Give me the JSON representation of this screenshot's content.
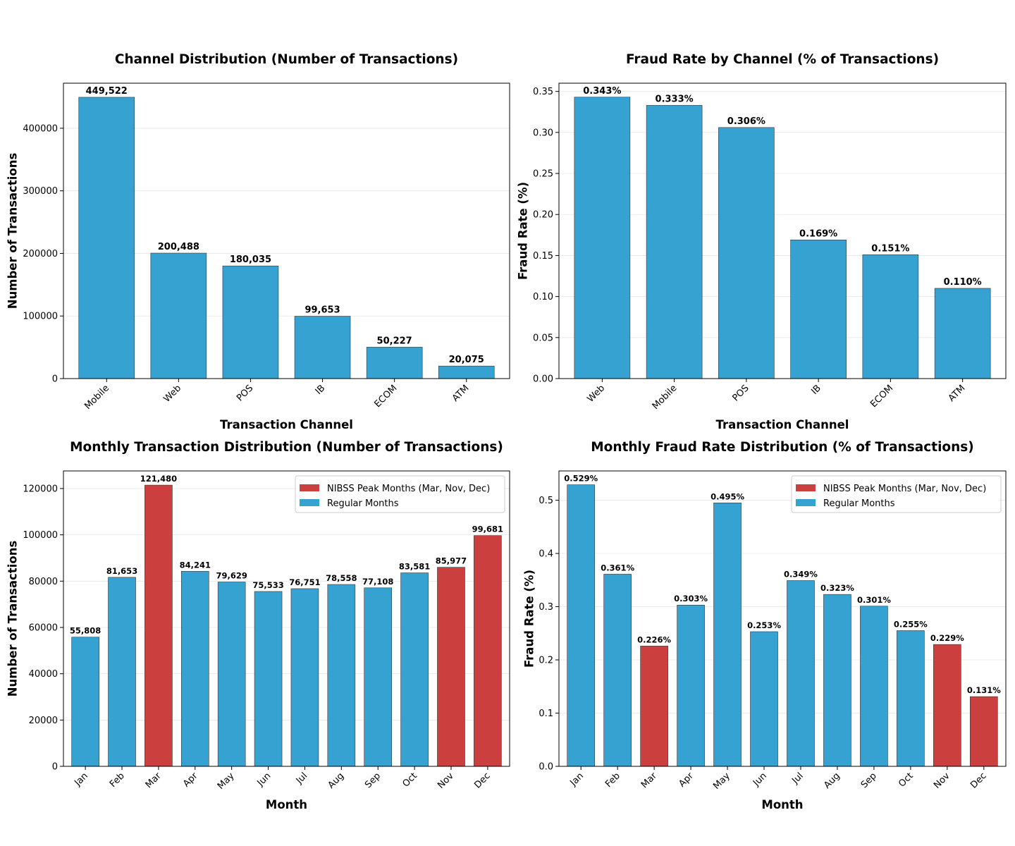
{
  "colors": {
    "regular": "#36a2d2",
    "peak": "#cc3f3f",
    "grid": "#e6e6e6",
    "edge": "#333333"
  },
  "chart_data": [
    {
      "id": "channel-count",
      "type": "bar",
      "title": "Channel Distribution (Number of Transactions)",
      "xlabel": "Transaction Channel",
      "ylabel": "Number of Transactions",
      "categories": [
        "Mobile",
        "Web",
        "POS",
        "IB",
        "ECOM",
        "ATM"
      ],
      "values": [
        449522,
        200488,
        180035,
        99653,
        50227,
        20075
      ],
      "bar_labels": [
        "449,522",
        "200,488",
        "180,035",
        "99,653",
        "50,227",
        "20,075"
      ],
      "bar_colors": [
        "regular",
        "regular",
        "regular",
        "regular",
        "regular",
        "regular"
      ],
      "ylim": [
        0,
        472000
      ],
      "yticks": [
        0,
        100000,
        200000,
        300000,
        400000
      ],
      "ytick_labels": [
        "0",
        "100000",
        "200000",
        "300000",
        "400000"
      ],
      "grid": true,
      "legend": null
    },
    {
      "id": "channel-fraud",
      "type": "bar",
      "title": "Fraud Rate by Channel (% of Transactions)",
      "xlabel": "Transaction Channel",
      "ylabel": "Fraud Rate (%)",
      "categories": [
        "Web",
        "Mobile",
        "POS",
        "IB",
        "ECOM",
        "ATM"
      ],
      "values": [
        0.343,
        0.333,
        0.306,
        0.169,
        0.151,
        0.11
      ],
      "bar_labels": [
        "0.343%",
        "0.333%",
        "0.306%",
        "0.169%",
        "0.151%",
        "0.110%"
      ],
      "bar_colors": [
        "regular",
        "regular",
        "regular",
        "regular",
        "regular",
        "regular"
      ],
      "ylim": [
        0,
        0.36
      ],
      "yticks": [
        0,
        0.05,
        0.1,
        0.15,
        0.2,
        0.25,
        0.3,
        0.35
      ],
      "ytick_labels": [
        "0.00",
        "0.05",
        "0.10",
        "0.15",
        "0.20",
        "0.25",
        "0.30",
        "0.35"
      ],
      "grid": true,
      "legend": null
    },
    {
      "id": "monthly-count",
      "type": "bar",
      "title": "Monthly Transaction Distribution (Number of Transactions)",
      "xlabel": "Month",
      "ylabel": "Number of Transactions",
      "categories": [
        "Jan",
        "Feb",
        "Mar",
        "Apr",
        "May",
        "Jun",
        "Jul",
        "Aug",
        "Sep",
        "Oct",
        "Nov",
        "Dec"
      ],
      "values": [
        55808,
        81653,
        121480,
        84241,
        79629,
        75533,
        76751,
        78558,
        77108,
        83581,
        85977,
        99681
      ],
      "bar_labels": [
        "55,808",
        "81,653",
        "121,480",
        "84,241",
        "79,629",
        "75,533",
        "76,751",
        "78,558",
        "77,108",
        "83,581",
        "85,977",
        "99,681"
      ],
      "bar_colors": [
        "regular",
        "regular",
        "peak",
        "regular",
        "regular",
        "regular",
        "regular",
        "regular",
        "regular",
        "regular",
        "peak",
        "peak"
      ],
      "ylim": [
        0,
        127600
      ],
      "yticks": [
        0,
        20000,
        40000,
        60000,
        80000,
        100000,
        120000
      ],
      "ytick_labels": [
        "0",
        "20000",
        "40000",
        "60000",
        "80000",
        "100000",
        "120000"
      ],
      "grid": true,
      "legend": {
        "position": "top-right",
        "entries": [
          {
            "label": "NIBSS Peak Months (Mar, Nov, Dec)",
            "color": "peak"
          },
          {
            "label": "Regular Months",
            "color": "regular"
          }
        ]
      }
    },
    {
      "id": "monthly-fraud",
      "type": "bar",
      "title": "Monthly Fraud Rate Distribution (% of Transactions)",
      "xlabel": "Month",
      "ylabel": "Fraud Rate (%)",
      "categories": [
        "Jan",
        "Feb",
        "Mar",
        "Apr",
        "May",
        "Jun",
        "Jul",
        "Aug",
        "Sep",
        "Oct",
        "Nov",
        "Dec"
      ],
      "values": [
        0.529,
        0.361,
        0.226,
        0.303,
        0.495,
        0.253,
        0.349,
        0.323,
        0.301,
        0.255,
        0.229,
        0.131
      ],
      "bar_labels": [
        "0.529%",
        "0.361%",
        "0.226%",
        "0.303%",
        "0.495%",
        "0.253%",
        "0.349%",
        "0.323%",
        "0.301%",
        "0.255%",
        "0.229%",
        "0.131%"
      ],
      "bar_colors": [
        "regular",
        "regular",
        "peak",
        "regular",
        "regular",
        "regular",
        "regular",
        "regular",
        "regular",
        "regular",
        "peak",
        "peak"
      ],
      "ylim": [
        0,
        0.555
      ],
      "yticks": [
        0,
        0.1,
        0.2,
        0.3,
        0.4,
        0.5
      ],
      "ytick_labels": [
        "0.0",
        "0.1",
        "0.2",
        "0.3",
        "0.4",
        "0.5"
      ],
      "grid": true,
      "legend": {
        "position": "top-right",
        "entries": [
          {
            "label": "NIBSS Peak Months (Mar, Nov, Dec)",
            "color": "peak"
          },
          {
            "label": "Regular Months",
            "color": "regular"
          }
        ]
      }
    }
  ]
}
